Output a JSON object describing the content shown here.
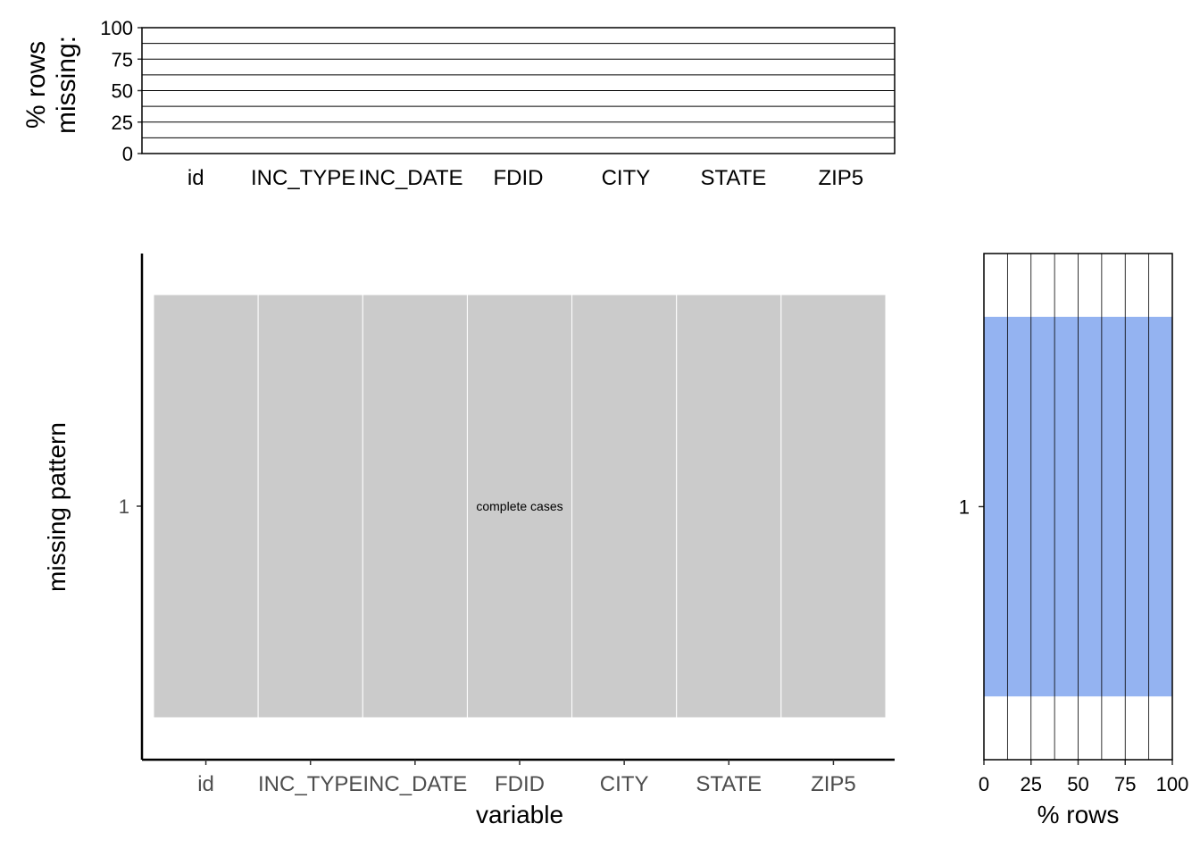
{
  "chart_data": [
    {
      "type": "bar",
      "panel": "top",
      "categories": [
        "id",
        "INC_TYPE",
        "INC_DATE",
        "FDID",
        "CITY",
        "STATE",
        "ZIP5"
      ],
      "values": [
        0,
        0,
        0,
        0,
        0,
        0,
        0
      ],
      "ylabel_line1": "% rows",
      "ylabel_line2": "missing:",
      "ylim": [
        0,
        100
      ],
      "yticks": [
        0,
        25,
        50,
        75,
        100
      ],
      "ytick_labels": [
        "0",
        "25",
        "50",
        "75",
        "100"
      ],
      "grid": true
    },
    {
      "type": "heatmap",
      "panel": "main",
      "categories": [
        "id",
        "INC_TYPE",
        "INC_DATE",
        "FDID",
        "CITY",
        "STATE",
        "ZIP5"
      ],
      "patterns": [
        "1"
      ],
      "cells": [
        [
          0,
          0,
          0,
          0,
          0,
          0,
          0
        ]
      ],
      "annotation": "complete cases",
      "xlabel": "variable",
      "ylabel": "missing pattern",
      "colors": {
        "complete": "#cbcbcb",
        "cell_border": "#ffffff"
      }
    },
    {
      "type": "bar",
      "panel": "right",
      "orientation": "horizontal",
      "categories": [
        "1"
      ],
      "values": [
        100
      ],
      "xlabel": "% rows",
      "xlim": [
        0,
        100
      ],
      "xticks": [
        0,
        25,
        50,
        75,
        100
      ],
      "xtick_labels": [
        "0",
        "25",
        "50",
        "75",
        "100"
      ],
      "grid": true,
      "colors": {
        "bar": "#94b3f1"
      }
    }
  ]
}
